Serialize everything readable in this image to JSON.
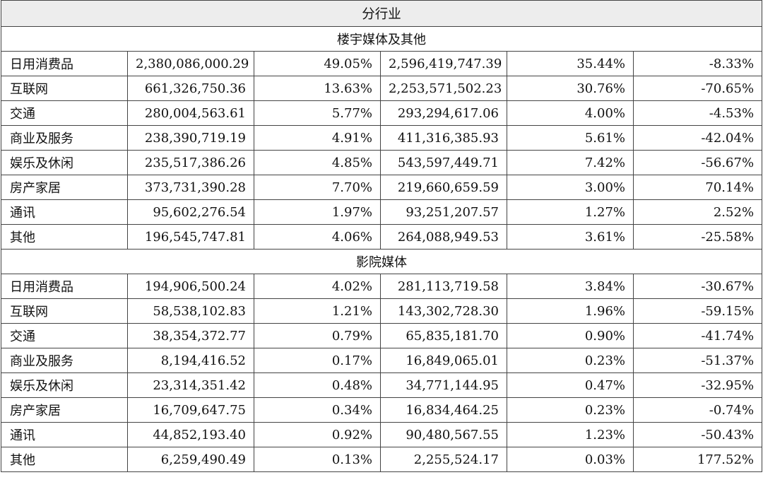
{
  "table": {
    "title": "分行业",
    "sections": [
      {
        "name": "楼宇媒体及其他",
        "rows": [
          [
            "日用消费品",
            "2,380,086,000.29",
            "49.05%",
            "2,596,419,747.39",
            "35.44%",
            "-8.33%"
          ],
          [
            "互联网",
            "661,326,750.36",
            "13.63%",
            "2,253,571,502.23",
            "30.76%",
            "-70.65%"
          ],
          [
            "交通",
            "280,004,563.61",
            "5.77%",
            "293,294,617.06",
            "4.00%",
            "-4.53%"
          ],
          [
            "商业及服务",
            "238,390,719.19",
            "4.91%",
            "411,316,385.93",
            "5.61%",
            "-42.04%"
          ],
          [
            "娱乐及休闲",
            "235,517,386.26",
            "4.85%",
            "543,597,449.71",
            "7.42%",
            "-56.67%"
          ],
          [
            "房产家居",
            "373,731,390.28",
            "7.70%",
            "219,660,659.59",
            "3.00%",
            "70.14%"
          ],
          [
            "通讯",
            "95,602,276.54",
            "1.97%",
            "93,251,207.57",
            "1.27%",
            "2.52%"
          ],
          [
            "其他",
            "196,545,747.81",
            "4.06%",
            "264,088,949.53",
            "3.61%",
            "-25.58%"
          ]
        ]
      },
      {
        "name": "影院媒体",
        "rows": [
          [
            "日用消费品",
            "194,906,500.24",
            "4.02%",
            "281,113,719.58",
            "3.84%",
            "-30.67%"
          ],
          [
            "互联网",
            "58,538,102.83",
            "1.21%",
            "143,302,728.30",
            "1.96%",
            "-59.15%"
          ],
          [
            "交通",
            "38,354,372.77",
            "0.79%",
            "65,835,181.70",
            "0.90%",
            "-41.74%"
          ],
          [
            "商业及服务",
            "8,194,416.52",
            "0.17%",
            "16,849,065.01",
            "0.23%",
            "-51.37%"
          ],
          [
            "娱乐及休闲",
            "23,314,351.42",
            "0.48%",
            "34,771,144.95",
            "0.47%",
            "-32.95%"
          ],
          [
            "房产家居",
            "16,709,647.75",
            "0.34%",
            "16,834,464.25",
            "0.23%",
            "-0.74%"
          ],
          [
            "通讯",
            "44,852,193.40",
            "0.92%",
            "90,480,567.55",
            "1.23%",
            "-50.43%"
          ],
          [
            "其他",
            "6,259,490.49",
            "0.13%",
            "2,255,524.17",
            "0.03%",
            "177.52%"
          ]
        ]
      }
    ]
  }
}
